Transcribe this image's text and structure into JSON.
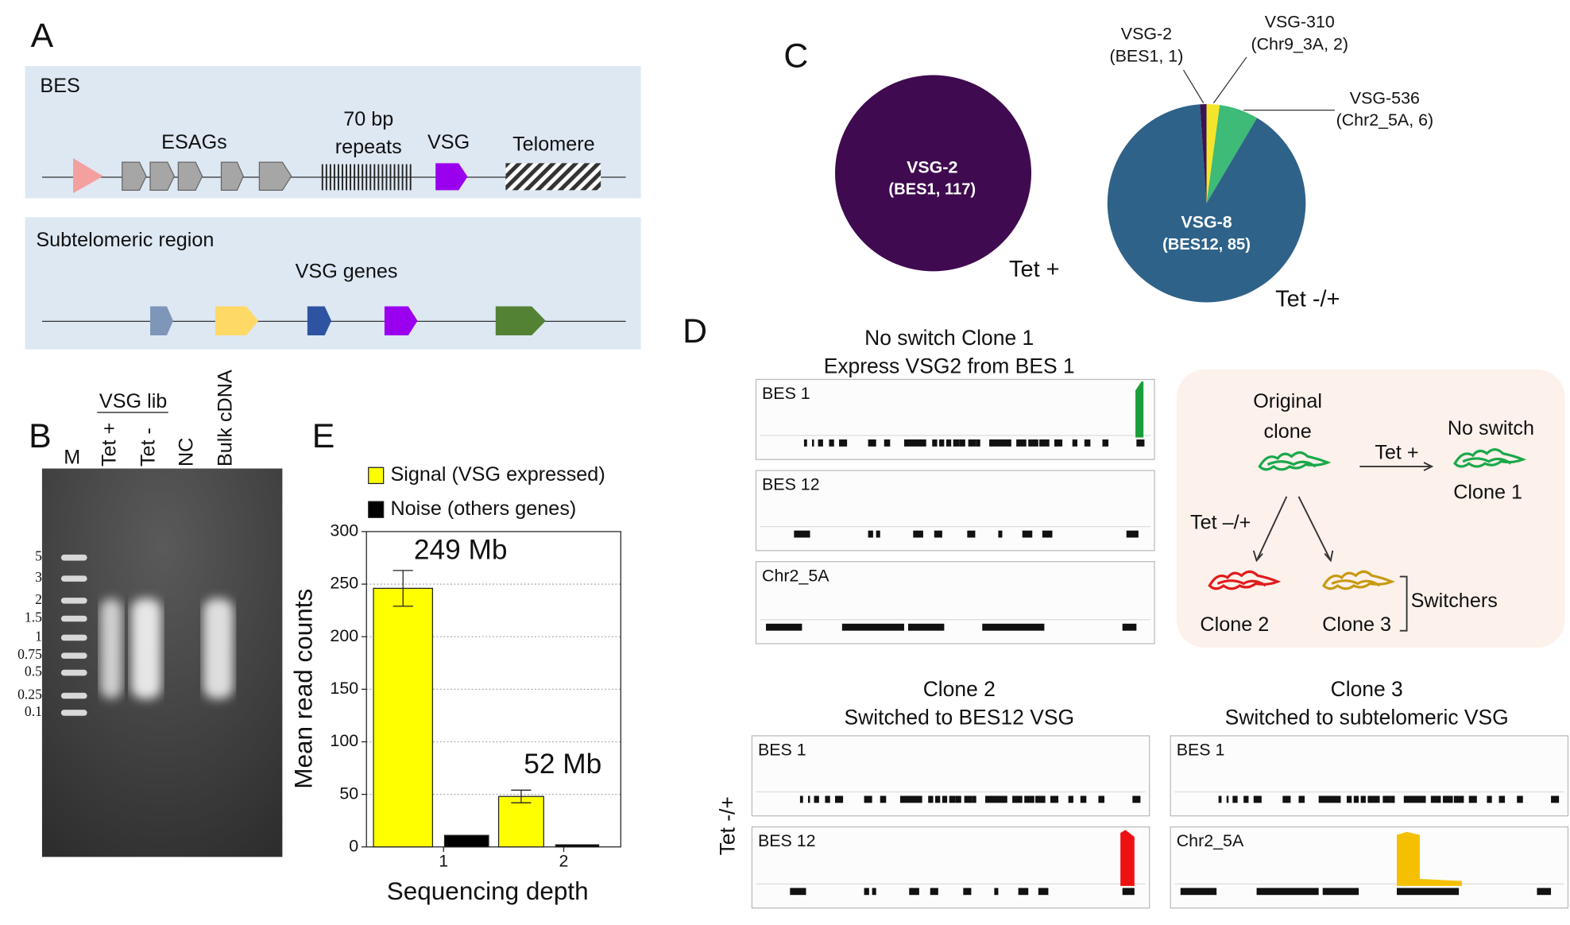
{
  "panel_labels": {
    "a": "A",
    "b": "B",
    "c": "C",
    "d": "D",
    "e": "E"
  },
  "panel_a": {
    "bes_title": "BES",
    "esags": "ESAGs",
    "repeats": [
      "70 bp",
      "repeats"
    ],
    "vsg": "VSG",
    "telomere": "Telomere",
    "subtelomeric_title": "Subtelomeric region",
    "vsg_genes": "VSG genes"
  },
  "panel_b": {
    "group": "VSG lib",
    "lanes": [
      "M",
      "Tet +",
      "Tet -",
      "NC",
      "Bulk cDNA"
    ],
    "ladder": [
      "5",
      "3",
      "2",
      "1.5",
      "1",
      "0.75",
      "0.5",
      "0.25",
      "0.1"
    ]
  },
  "panel_d": {
    "clone1_title": [
      "No switch Clone 1",
      "Express VSG2 from BES 1"
    ],
    "clone1_tracks": [
      "BES 1",
      "BES 12",
      "Chr2_5A"
    ],
    "scheme": {
      "original": [
        "Original",
        "clone"
      ],
      "tet_plus": "Tet +",
      "no_switch": [
        "No switch",
        "Clone 1"
      ],
      "tet_minus": "Tet –/+",
      "clone2": "Clone 2",
      "clone3": "Clone 3",
      "switchers": "Switchers"
    },
    "clone2_title": [
      "Clone 2",
      "Switched to BES12 VSG"
    ],
    "clone2_tracks": [
      "BES 1",
      "BES 12"
    ],
    "clone3_title": [
      "Clone 3",
      "Switched to subtelomeric VSG"
    ],
    "clone3_tracks": [
      "BES 1",
      "Chr2_5A"
    ],
    "side_label": "Tet -/+"
  },
  "chart_data": [
    {
      "type": "pie",
      "label": "Tet +",
      "slices": [
        {
          "name": "VSG-2",
          "label": "(BES1, 117)",
          "value": 117,
          "color": "#3f0a4f"
        }
      ]
    },
    {
      "type": "pie",
      "label": "Tet -/+",
      "slices": [
        {
          "name": "VSG-310",
          "label": "(Chr9_3A, 2)",
          "value": 2,
          "color": "#f5e52a"
        },
        {
          "name": "VSG-536",
          "label": "(Chr2_5A, 6)",
          "value": 6,
          "color": "#3dbb77"
        },
        {
          "name": "VSG-8",
          "label": "(BES12, 85)",
          "value": 85,
          "color": "#2e6289"
        },
        {
          "name": "VSG-2",
          "label": "(BES1, 1)",
          "value": 1,
          "color": "#3b1352"
        }
      ]
    },
    {
      "type": "bar",
      "categories": [
        "1",
        "2"
      ],
      "series": [
        {
          "name": "Signal (VSG expressed)",
          "color": "#ffff00",
          "values": [
            246,
            48
          ],
          "errors": [
            17,
            6
          ]
        },
        {
          "name": "Noise (others genes)",
          "color": "#000000",
          "values": [
            11,
            2
          ]
        }
      ],
      "ylim": [
        0,
        300
      ],
      "yticks": [
        0,
        50,
        100,
        150,
        200,
        250,
        300
      ],
      "grid": true,
      "xlabel": "Sequencing depth",
      "ylabel": "Mean read counts",
      "annotations": [
        "249 Mb",
        "52 Mb"
      ]
    }
  ]
}
